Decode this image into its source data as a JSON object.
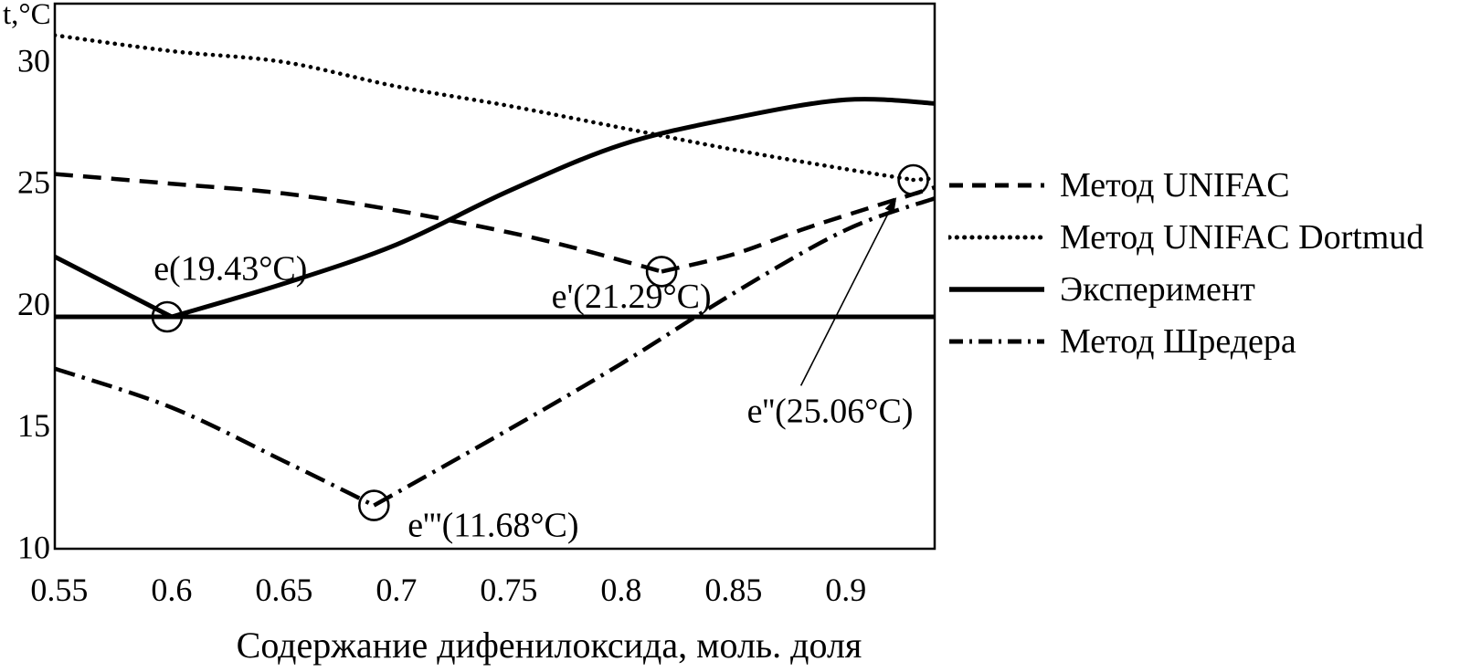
{
  "figure": {
    "background_color": "#ffffff",
    "ink_color": "#000000",
    "y_axis_unit_label": "t,°C",
    "x_axis_title": "Содержание дифенилоксида, моль. доля",
    "x_tick_labels": [
      "0.55",
      "0.6",
      "0.65",
      "0.7",
      "0.75",
      "0.8",
      "0.85",
      "0.9"
    ],
    "y_tick_labels": [
      "30",
      "25",
      "20",
      "15",
      "10"
    ]
  },
  "legend": {
    "items": [
      {
        "id": "unifac",
        "label": "Метод UNIFAC",
        "style": "dashed"
      },
      {
        "id": "unifac-dortmund",
        "label": "Метод UNIFAC Dortmud",
        "style": "dotted"
      },
      {
        "id": "experiment",
        "label": "Эксперимент",
        "style": "solid"
      },
      {
        "id": "schroeder",
        "label": "Метод Шредера",
        "style": "dashdot"
      }
    ]
  },
  "chart_data": {
    "type": "line",
    "title": "",
    "xlabel": "Содержание дифенилоксида, моль. доля",
    "ylabel": "t,°C",
    "xlim": [
      0.548,
      0.9395
    ],
    "ylim": [
      9.9,
      32.3
    ],
    "x_ticks": [
      0.55,
      0.6,
      0.65,
      0.7,
      0.75,
      0.8,
      0.85,
      0.9
    ],
    "y_ticks": [
      30,
      25,
      20,
      15,
      10
    ],
    "grid": false,
    "legend_position": "outside-right",
    "series": [
      {
        "id": "unifac",
        "name": "Метод UNIFAC",
        "style": "dashed",
        "in_legend": true,
        "kinks": [
          7
        ],
        "points": [
          [
            0.548,
            25.3
          ],
          [
            0.6,
            24.9
          ],
          [
            0.65,
            24.5
          ],
          [
            0.7,
            23.8
          ],
          [
            0.75,
            22.9
          ],
          [
            0.78,
            22.25
          ],
          [
            0.8,
            21.75
          ],
          [
            0.818,
            21.29
          ],
          [
            0.85,
            22.0
          ],
          [
            0.88,
            23.0
          ],
          [
            0.9,
            23.6
          ],
          [
            0.9395,
            24.75
          ]
        ]
      },
      {
        "id": "unifac-dortmund",
        "name": "Метод UNIFAC Dortmud",
        "style": "dotted",
        "in_legend": true,
        "kinks": [
          8
        ],
        "points": [
          [
            0.548,
            31.0
          ],
          [
            0.6,
            30.35
          ],
          [
            0.65,
            29.9
          ],
          [
            0.7,
            28.9
          ],
          [
            0.75,
            28.1
          ],
          [
            0.8,
            27.2
          ],
          [
            0.85,
            26.3
          ],
          [
            0.9,
            25.5
          ],
          [
            0.93,
            25.06
          ],
          [
            0.9395,
            25.12
          ]
        ]
      },
      {
        "id": "experiment",
        "name": "Эксперимент",
        "style": "solid",
        "in_legend": true,
        "kinks": [
          1
        ],
        "points": [
          [
            0.548,
            21.9
          ],
          [
            0.6,
            19.43
          ],
          [
            0.65,
            20.8
          ],
          [
            0.7,
            22.4
          ],
          [
            0.75,
            24.6
          ],
          [
            0.8,
            26.5
          ],
          [
            0.85,
            27.6
          ],
          [
            0.9,
            28.35
          ],
          [
            0.9395,
            28.2
          ]
        ]
      },
      {
        "id": "schroeder",
        "name": "Метод Шредера",
        "style": "dashdot",
        "in_legend": true,
        "kinks": [
          3
        ],
        "points": [
          [
            0.548,
            17.3
          ],
          [
            0.6,
            15.7
          ],
          [
            0.65,
            13.5
          ],
          [
            0.69,
            11.68
          ],
          [
            0.75,
            14.8
          ],
          [
            0.8,
            17.5
          ],
          [
            0.85,
            20.4
          ],
          [
            0.9,
            23.0
          ],
          [
            0.9395,
            24.3
          ]
        ]
      },
      {
        "id": "eutectic-line",
        "name": "",
        "style": "solid",
        "in_legend": false,
        "kinks": [],
        "points": [
          [
            0.548,
            19.43
          ],
          [
            0.9395,
            19.43
          ]
        ]
      }
    ],
    "eutectic_points": [
      {
        "id": "e",
        "label": "e(19.43°C)",
        "x": 0.598,
        "y": 19.43,
        "on_series": "experiment"
      },
      {
        "id": "e1",
        "label": "e'(21.29°C)",
        "x": 0.818,
        "y": 21.29,
        "on_series": "unifac"
      },
      {
        "id": "e2",
        "label": "e''(25.06°C)",
        "x": 0.93,
        "y": 25.06,
        "on_series": "unifac-dortmund"
      },
      {
        "id": "e3",
        "label": "e'''(11.68°C)",
        "x": 0.69,
        "y": 11.68,
        "on_series": "schroeder"
      }
    ],
    "annotations": [
      {
        "id": "e",
        "text": "e(19.43°C)",
        "x": 0.592,
        "y": 20.95
      },
      {
        "id": "e1",
        "text": "e'(21.29°C)",
        "x": 0.769,
        "y": 19.8
      },
      {
        "id": "e2",
        "text": "e''(25.06°C)",
        "x": 0.856,
        "y": 15.1
      },
      {
        "id": "e3",
        "text": "e'''(11.68°C)",
        "x": 0.705,
        "y": 10.4
      }
    ],
    "annotation_arrow": {
      "id": "e2-arrow",
      "from": [
        0.88,
        16.6
      ],
      "to": [
        0.9225,
        24.35
      ]
    }
  }
}
